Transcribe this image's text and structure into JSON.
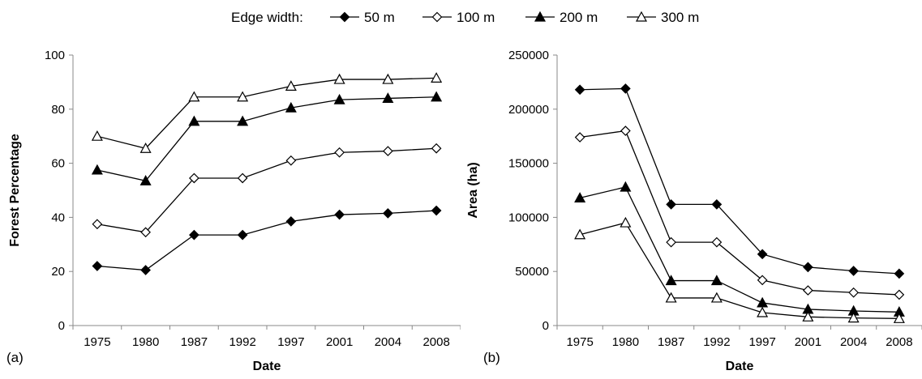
{
  "legend": {
    "title": "Edge width:",
    "entries": [
      {
        "label": "50 m",
        "marker": "diamond",
        "fill": "#000000"
      },
      {
        "label": "100 m",
        "marker": "diamond",
        "fill": "#ffffff"
      },
      {
        "label": "200 m",
        "marker": "triangle",
        "fill": "#000000"
      },
      {
        "label": "300 m",
        "marker": "triangle",
        "fill": "#ffffff"
      }
    ]
  },
  "chart_data": [
    {
      "type": "line",
      "panel_label": "(a)",
      "xlabel": "Date",
      "ylabel": "Forest  Percentage",
      "categories": [
        "1975",
        "1980",
        "1987",
        "1992",
        "1997",
        "2001",
        "2004",
        "2008"
      ],
      "ylim": [
        0,
        100
      ],
      "yticks": [
        0,
        20,
        40,
        60,
        80,
        100
      ],
      "grid": false,
      "series": [
        {
          "name": "50 m",
          "values": [
            22,
            20.5,
            33.5,
            33.5,
            38.5,
            41,
            41.5,
            42.5
          ]
        },
        {
          "name": "100 m",
          "values": [
            37.5,
            34.5,
            54.5,
            54.5,
            61,
            64,
            64.5,
            65.5
          ]
        },
        {
          "name": "200 m",
          "values": [
            57.5,
            53.5,
            75.5,
            75.5,
            80.5,
            83.5,
            84,
            84.5
          ]
        },
        {
          "name": "300 m",
          "values": [
            70,
            65.5,
            84.5,
            84.5,
            88.5,
            91,
            91,
            91.5
          ]
        }
      ]
    },
    {
      "type": "line",
      "panel_label": "(b)",
      "xlabel": "Date",
      "ylabel": "Area (ha)",
      "categories": [
        "1975",
        "1980",
        "1987",
        "1992",
        "1997",
        "2001",
        "2004",
        "2008"
      ],
      "ylim": [
        0,
        250000
      ],
      "yticks": [
        0,
        50000,
        100000,
        150000,
        200000,
        250000
      ],
      "grid": false,
      "series": [
        {
          "name": "50 m",
          "values": [
            218000,
            219000,
            112000,
            112000,
            66000,
            54000,
            50500,
            48000
          ]
        },
        {
          "name": "100 m",
          "values": [
            174000,
            180000,
            77000,
            77000,
            42000,
            32500,
            30500,
            28500
          ]
        },
        {
          "name": "200 m",
          "values": [
            118000,
            128000,
            41500,
            41500,
            21000,
            15000,
            13500,
            12500
          ]
        },
        {
          "name": "300 m",
          "values": [
            84000,
            95000,
            25500,
            25500,
            12000,
            8000,
            7000,
            6500
          ]
        }
      ]
    }
  ]
}
